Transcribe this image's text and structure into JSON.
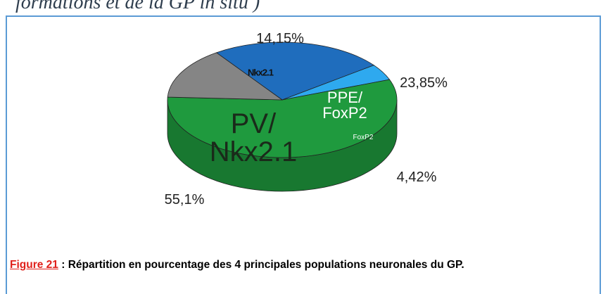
{
  "header": {
    "text": "formations et de la GP in situ )"
  },
  "chart_data": {
    "type": "pie",
    "categories": [
      "PPE/\nFoxP2",
      "FoxP2",
      "PV/\nNkx2.1",
      "Nkx2.1"
    ],
    "values": [
      23.85,
      4.42,
      55.1,
      14.15
    ],
    "value_labels": [
      "23,85%",
      "4,42%",
      "55,1%",
      "14,15%"
    ],
    "colors": [
      "#1f6dbd",
      "#2ea9ef",
      "#1f9a3e",
      "#858585"
    ]
  },
  "caption": {
    "figure": "Figure 21",
    "text": " : Répartition en pourcentage des 4 principales populations neuronales du GP."
  }
}
